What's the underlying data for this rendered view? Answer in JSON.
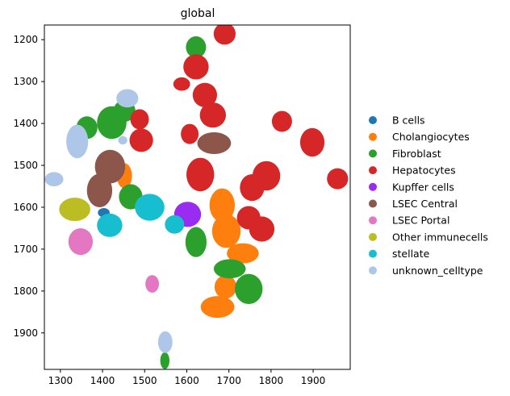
{
  "chart_data": {
    "type": "scatter",
    "title": "global",
    "xlabel": "",
    "ylabel": "",
    "xlim": [
      1262,
      1988
    ],
    "ylim": [
      1165,
      1987
    ],
    "y_inverted": true,
    "xticks": [
      1300,
      1400,
      1500,
      1600,
      1700,
      1800,
      1900
    ],
    "yticks": [
      1200,
      1300,
      1400,
      1500,
      1600,
      1700,
      1800,
      1900
    ],
    "grid": false,
    "legend_position": "right",
    "series": [
      {
        "name": "B cells",
        "color": "#1f77b4",
        "cells": [
          {
            "x": 1403,
            "y": 1613,
            "rx": 14,
            "ry": 11
          }
        ]
      },
      {
        "name": "Cholangiocytes",
        "color": "#ff7f0e",
        "cells": [
          {
            "x": 1452,
            "y": 1525,
            "rx": 18,
            "ry": 30
          },
          {
            "x": 1684,
            "y": 1595,
            "rx": 30,
            "ry": 40
          },
          {
            "x": 1694,
            "y": 1657,
            "rx": 34,
            "ry": 40
          },
          {
            "x": 1733,
            "y": 1710,
            "rx": 38,
            "ry": 24
          },
          {
            "x": 1692,
            "y": 1790,
            "rx": 26,
            "ry": 28
          },
          {
            "x": 1673,
            "y": 1838,
            "rx": 40,
            "ry": 26
          }
        ]
      },
      {
        "name": "Fibroblast",
        "color": "#2ca02c",
        "cells": [
          {
            "x": 1622,
            "y": 1218,
            "rx": 24,
            "ry": 26
          },
          {
            "x": 1363,
            "y": 1410,
            "rx": 25,
            "ry": 27
          },
          {
            "x": 1422,
            "y": 1398,
            "rx": 35,
            "ry": 39
          },
          {
            "x": 1452,
            "y": 1370,
            "rx": 26,
            "ry": 26
          },
          {
            "x": 1467,
            "y": 1575,
            "rx": 28,
            "ry": 30
          },
          {
            "x": 1622,
            "y": 1683,
            "rx": 25,
            "ry": 36
          },
          {
            "x": 1702,
            "y": 1747,
            "rx": 38,
            "ry": 23
          },
          {
            "x": 1747,
            "y": 1795,
            "rx": 33,
            "ry": 36
          },
          {
            "x": 1548,
            "y": 1966,
            "rx": 11,
            "ry": 20
          }
        ]
      },
      {
        "name": "Hepatocytes",
        "color": "#d62728",
        "cells": [
          {
            "x": 1690,
            "y": 1186,
            "rx": 26,
            "ry": 26
          },
          {
            "x": 1622,
            "y": 1265,
            "rx": 30,
            "ry": 30
          },
          {
            "x": 1588,
            "y": 1306,
            "rx": 20,
            "ry": 16
          },
          {
            "x": 1643,
            "y": 1332,
            "rx": 29,
            "ry": 29
          },
          {
            "x": 1662,
            "y": 1380,
            "rx": 31,
            "ry": 30
          },
          {
            "x": 1488,
            "y": 1390,
            "rx": 22,
            "ry": 24
          },
          {
            "x": 1492,
            "y": 1440,
            "rx": 28,
            "ry": 28
          },
          {
            "x": 1607,
            "y": 1425,
            "rx": 21,
            "ry": 24
          },
          {
            "x": 1826,
            "y": 1395,
            "rx": 24,
            "ry": 25
          },
          {
            "x": 1898,
            "y": 1445,
            "rx": 29,
            "ry": 34
          },
          {
            "x": 1632,
            "y": 1522,
            "rx": 33,
            "ry": 40
          },
          {
            "x": 1789,
            "y": 1525,
            "rx": 33,
            "ry": 35
          },
          {
            "x": 1755,
            "y": 1553,
            "rx": 29,
            "ry": 32
          },
          {
            "x": 1958,
            "y": 1532,
            "rx": 25,
            "ry": 25
          },
          {
            "x": 1747,
            "y": 1625,
            "rx": 28,
            "ry": 28
          },
          {
            "x": 1778,
            "y": 1652,
            "rx": 30,
            "ry": 30
          }
        ]
      },
      {
        "name": "Kupffer cells",
        "color": "#9a2cf1",
        "cells": [
          {
            "x": 1602,
            "y": 1617,
            "rx": 32,
            "ry": 30
          }
        ]
      },
      {
        "name": "LSEC Central",
        "color": "#8c564b",
        "cells": [
          {
            "x": 1418,
            "y": 1503,
            "rx": 36,
            "ry": 40
          },
          {
            "x": 1393,
            "y": 1560,
            "rx": 30,
            "ry": 40
          },
          {
            "x": 1665,
            "y": 1447,
            "rx": 40,
            "ry": 26
          }
        ]
      },
      {
        "name": "LSEC Portal",
        "color": "#e377c2",
        "cells": [
          {
            "x": 1348,
            "y": 1682,
            "rx": 29,
            "ry": 32
          },
          {
            "x": 1518,
            "y": 1783,
            "rx": 16,
            "ry": 21
          }
        ]
      },
      {
        "name": "Other immunecells",
        "color": "#bcbd22",
        "cells": [
          {
            "x": 1334,
            "y": 1605,
            "rx": 37,
            "ry": 28
          }
        ]
      },
      {
        "name": "stellate",
        "color": "#17becf",
        "cells": [
          {
            "x": 1417,
            "y": 1643,
            "rx": 30,
            "ry": 28
          },
          {
            "x": 1512,
            "y": 1600,
            "rx": 35,
            "ry": 32
          },
          {
            "x": 1571,
            "y": 1641,
            "rx": 23,
            "ry": 22
          }
        ]
      },
      {
        "name": "unknown_celltype",
        "color": "#aec7e8",
        "cells": [
          {
            "x": 1459,
            "y": 1340,
            "rx": 26,
            "ry": 22
          },
          {
            "x": 1340,
            "y": 1443,
            "rx": 26,
            "ry": 40
          },
          {
            "x": 1448,
            "y": 1440,
            "rx": 11,
            "ry": 10
          },
          {
            "x": 1285,
            "y": 1533,
            "rx": 22,
            "ry": 17
          },
          {
            "x": 1549,
            "y": 1922,
            "rx": 17,
            "ry": 26
          }
        ]
      }
    ]
  }
}
